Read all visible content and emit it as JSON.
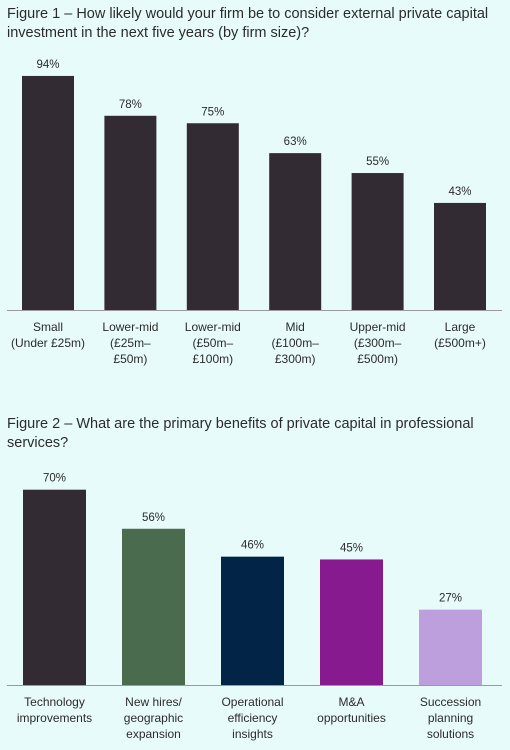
{
  "figure1": {
    "title": "Figure 1 – How likely would your firm be to consider external private capital investment in the next five years (by firm size)?"
  },
  "figure2": {
    "title": "Figure 2 – What are the primary benefits of private capital in professional services?"
  },
  "colors": {
    "background": "#e8fbfb",
    "text": "#2b2b2b",
    "fig1_bar": "#322b33",
    "fig2_bars": [
      "#322b33",
      "#4a6b4d",
      "#022446",
      "#881a8f",
      "#bc9fdc"
    ]
  },
  "chart_data": [
    {
      "type": "bar",
      "title": "Figure 1 – How likely would your firm be to consider external private capital investment in the next five years (by firm size)?",
      "categories": [
        [
          "Small",
          "(Under £25m)"
        ],
        [
          "Lower-mid",
          "(£25m–",
          "£50m)"
        ],
        [
          "Lower-mid",
          "(£50m–",
          "£100m)"
        ],
        [
          "Mid",
          "(£100m–",
          "£300m)"
        ],
        [
          "Upper-mid",
          "(£300m–",
          "£500m)"
        ],
        [
          "Large",
          "(£500m+)"
        ]
      ],
      "values": [
        94,
        78,
        75,
        63,
        55,
        43
      ],
      "value_labels": [
        "94%",
        "78%",
        "75%",
        "63%",
        "55%",
        "43%"
      ],
      "ylim": [
        0,
        100
      ],
      "grid": false,
      "unit": "%"
    },
    {
      "type": "bar",
      "title": "Figure 2 – What are the primary benefits of private capital in professional services?",
      "categories": [
        [
          "Technology",
          "improvements"
        ],
        [
          "New hires/",
          "geographic",
          "expansion"
        ],
        [
          "Operational",
          "efficiency",
          "insights"
        ],
        [
          "M&A",
          "opportunities"
        ],
        [
          "Succession",
          "planning",
          "solutions"
        ]
      ],
      "values": [
        70,
        56,
        46,
        45,
        27
      ],
      "value_labels": [
        "70%",
        "56%",
        "46%",
        "45%",
        "27%"
      ],
      "ylim": [
        0,
        100
      ],
      "grid": false,
      "unit": "%"
    }
  ]
}
